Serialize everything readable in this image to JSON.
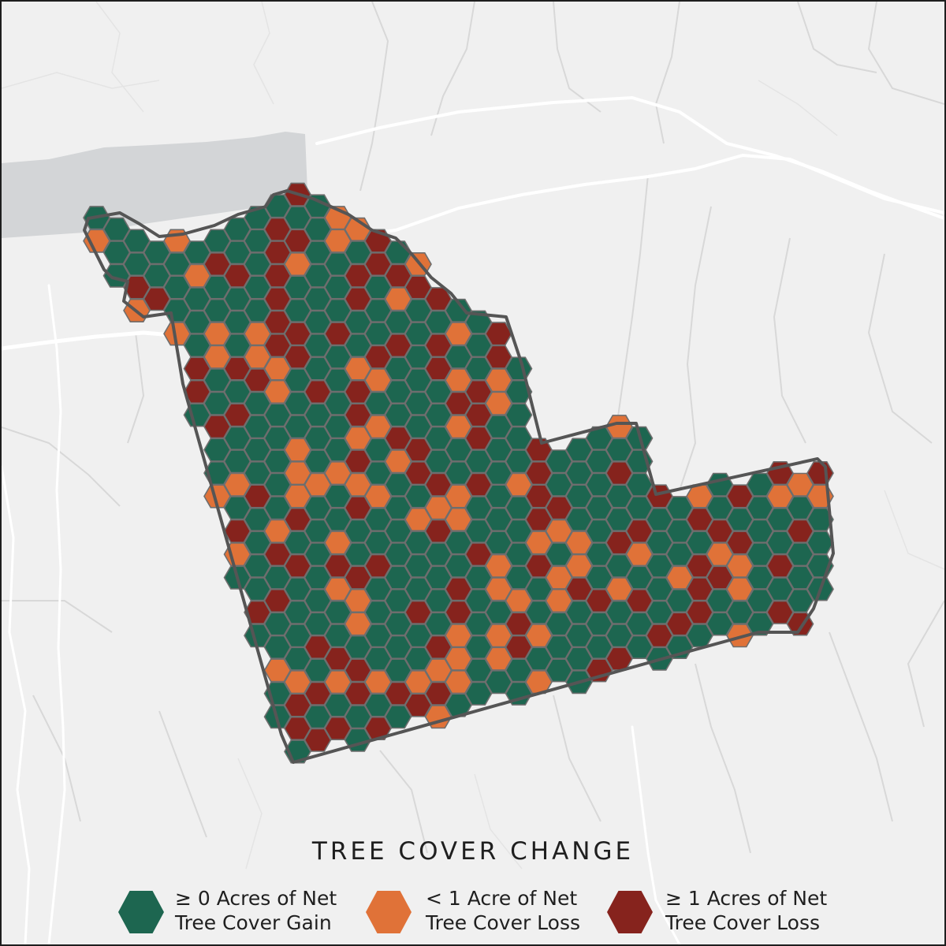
{
  "legend": {
    "title": "TREE COVER CHANGE",
    "items": [
      {
        "line1": "≥ 0 Acres of Net",
        "line2": "Tree Cover Gain",
        "color": "#1d6650"
      },
      {
        "line1": "< 1 Acre of Net",
        "line2": "Tree Cover Loss",
        "color": "#e07238"
      },
      {
        "line1": "≥ 1 Acres of Net",
        "line2": "Tree Cover Loss",
        "color": "#86231d"
      }
    ]
  },
  "colors": {
    "background": "#f0f0f0",
    "water": "#d3d5d7",
    "roads_major": "#ffffff",
    "roads_minor": "#d9d9d9",
    "boundary": "#555555",
    "hex_outline": "#6e6e6e"
  }
}
